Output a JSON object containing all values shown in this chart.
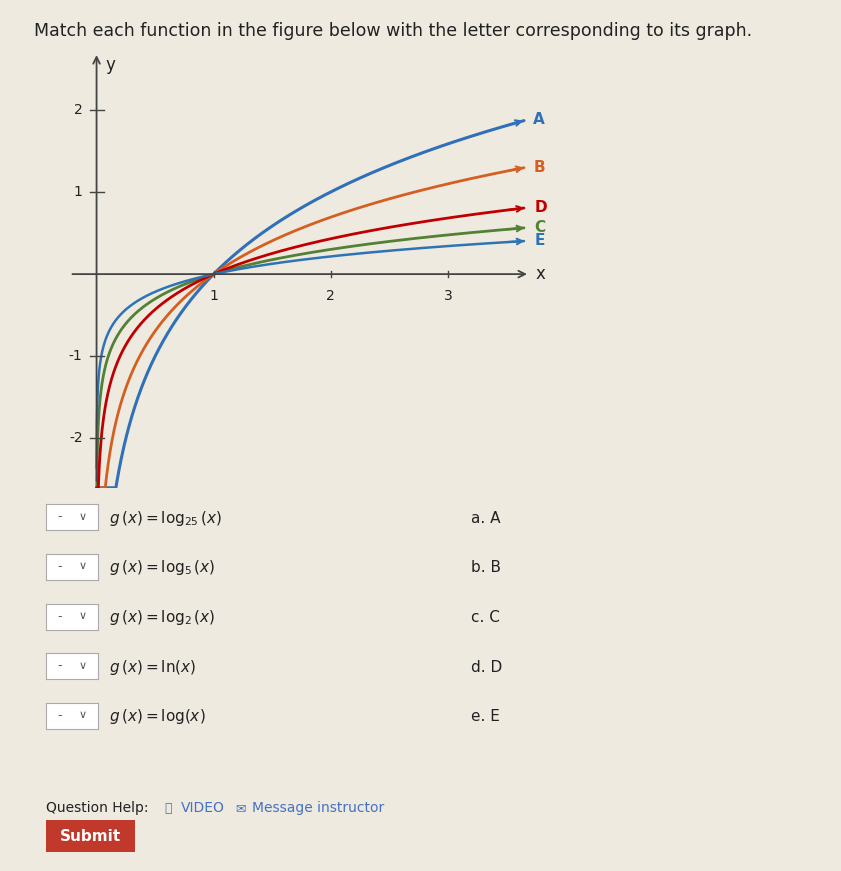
{
  "title": "Match each function in the figure below with the letter corresponding to its graph.",
  "curves": [
    {
      "label": "A",
      "base": 2,
      "color": "#3070b8",
      "lw": 2.2
    },
    {
      "label": "B",
      "base": 2.718281828,
      "color": "#d45f20",
      "lw": 2.0
    },
    {
      "label": "C",
      "base": 10,
      "color": "#538134",
      "lw": 2.0
    },
    {
      "label": "D",
      "base": 5,
      "color": "#c00000",
      "lw": 2.0
    },
    {
      "label": "E",
      "base": 25,
      "color": "#2e74b5",
      "lw": 1.8
    }
  ],
  "xlim": [
    -0.25,
    3.7
  ],
  "ylim": [
    -2.6,
    2.7
  ],
  "xticks": [
    1,
    2,
    3
  ],
  "yticks": [
    -2,
    -1,
    1,
    2
  ],
  "xlabel": "x",
  "ylabel": "y",
  "bg_color": "#eeeae0",
  "plot_bg": "#eeeae0",
  "axis_color": "#444444",
  "text_color": "#222222",
  "functions_latex": [
    "g\\,(x) = \\log_{25}(x)",
    "g\\,(x) = \\log_{5}(x)",
    "g\\,(x) = \\log_{2}(x)",
    "g\\,(x) = \\ln(x)",
    "g\\,(x) = \\log(x)"
  ],
  "answers": [
    "a. A",
    "b. B",
    "c. C",
    "d. D",
    "e. E"
  ],
  "q_help_text": "Question Help:",
  "video_text": "VIDEO",
  "msg_text": "Message instructor",
  "submit_text": "Submit"
}
